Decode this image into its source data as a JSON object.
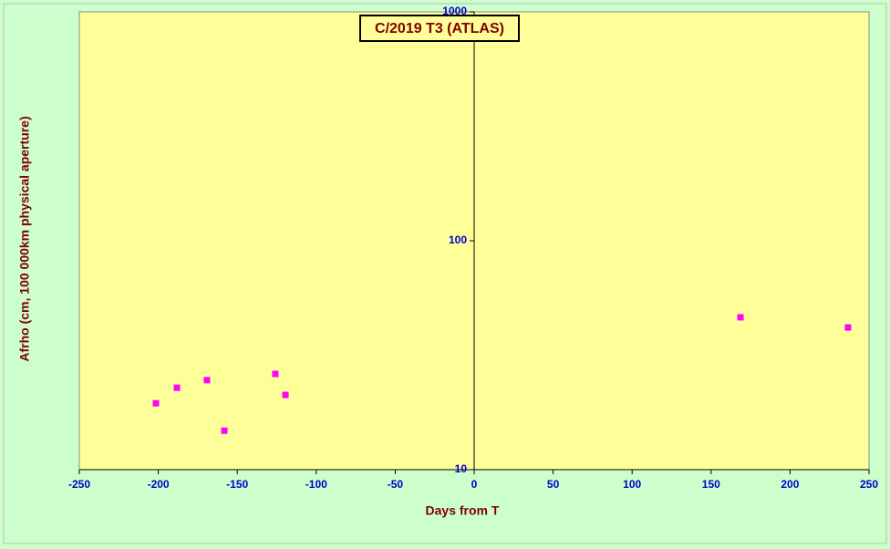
{
  "chart_data": {
    "type": "scatter",
    "title": "C/2019 T3 (ATLAS)",
    "x_label": "Days from T",
    "y_label": "Afrho (cm, 100 000km physical aperture)",
    "x": [
      -201.5,
      -188.2,
      -169.2,
      -158.2,
      -125.9,
      -119.5,
      168.6,
      236.7
    ],
    "values": [
      19.5,
      22.8,
      24.6,
      14.8,
      26.2,
      21.2,
      46.3,
      41.8
    ],
    "color": "#ff00ff",
    "xlim": [
      -250,
      250
    ],
    "xticks": [
      -250,
      -200,
      -150,
      -100,
      -50,
      0,
      50,
      100,
      150,
      200,
      250
    ],
    "ylim": [
      10,
      1000
    ],
    "yticks": [
      10,
      100,
      1000
    ],
    "log_y": true
  }
}
